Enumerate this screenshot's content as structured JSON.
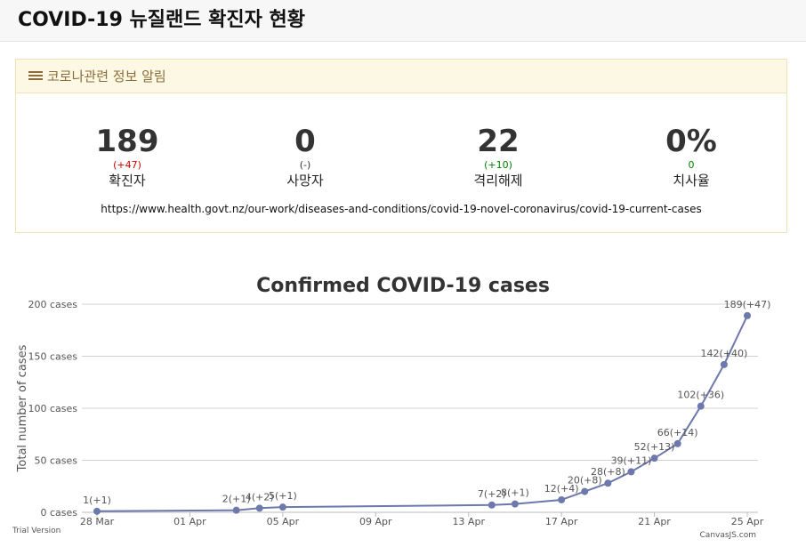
{
  "header": {
    "title": "COVID-19 뉴질랜드 확진자 현황"
  },
  "panel": {
    "heading": "코로나관련 정보 알림",
    "stats": [
      {
        "value": "189",
        "delta": "(+47)",
        "label": "확진자",
        "delta_color": "#cc0000"
      },
      {
        "value": "0",
        "delta": "(-)",
        "label": "사망자",
        "delta_color": "#333333"
      },
      {
        "value": "22",
        "delta": "(+10)",
        "label": "격리해제",
        "delta_color": "#008000"
      },
      {
        "value": "0%",
        "delta": "0",
        "label": "치사율",
        "delta_color": "#008000"
      }
    ],
    "source_url": "https://www.health.govt.nz/our-work/diseases-and-conditions/covid-19-novel-coronavirus/covid-19-current-cases"
  },
  "chart_footer": {
    "left": "Trial Version",
    "right": "CanvasJS.com"
  },
  "chart_data": {
    "type": "line",
    "title": "Confirmed COVID-19 cases",
    "ylabel": "Total number of cases",
    "ylim": [
      0,
      200
    ],
    "yticks": [
      "0 cases",
      "50 cases",
      "100 cases",
      "150 cases",
      "200 cases"
    ],
    "xticks": [
      "28 Mar",
      "01 Apr",
      "05 Apr",
      "09 Apr",
      "13 Apr",
      "17 Apr",
      "21 Apr",
      "25 Apr"
    ],
    "grid": true,
    "line_color": "#6d78ad",
    "points": [
      {
        "x": "28 Mar",
        "y": 1,
        "label": "1(+1)"
      },
      {
        "x": "03 Apr",
        "y": 2,
        "label": "2(+1)"
      },
      {
        "x": "04 Apr",
        "y": 4,
        "label": "4(+2)"
      },
      {
        "x": "05 Apr",
        "y": 5,
        "label": "5(+1)"
      },
      {
        "x": "14 Apr",
        "y": 7,
        "label": "7(+2)"
      },
      {
        "x": "15 Apr",
        "y": 8,
        "label": "8(+1)"
      },
      {
        "x": "17 Apr",
        "y": 12,
        "label": "12(+4)"
      },
      {
        "x": "18 Apr",
        "y": 20,
        "label": "20(+8)"
      },
      {
        "x": "19 Apr",
        "y": 28,
        "label": "28(+8)"
      },
      {
        "x": "20 Apr",
        "y": 39,
        "label": "39(+11)"
      },
      {
        "x": "21 Apr",
        "y": 52,
        "label": "52(+13)"
      },
      {
        "x": "22 Apr",
        "y": 66,
        "label": "66(+14)"
      },
      {
        "x": "23 Apr",
        "y": 102,
        "label": "102(+36)"
      },
      {
        "x": "24 Apr",
        "y": 142,
        "label": "142(+40)"
      },
      {
        "x": "25 Apr",
        "y": 189,
        "label": "189(+47)"
      }
    ]
  }
}
